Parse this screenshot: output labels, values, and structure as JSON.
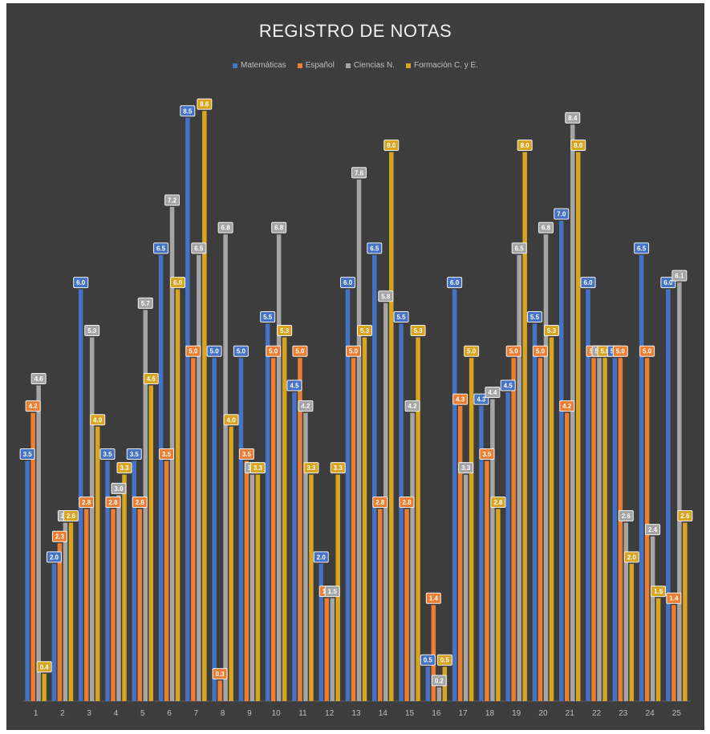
{
  "chart_data": {
    "type": "bar",
    "title": "REGISTRO DE NOTAS",
    "xlabel": "",
    "ylabel": "",
    "ylim": [
      0,
      9
    ],
    "grid": false,
    "legend": "top",
    "categories": [
      "1",
      "2",
      "3",
      "4",
      "5",
      "6",
      "7",
      "8",
      "9",
      "10",
      "11",
      "12",
      "13",
      "14",
      "15",
      "16",
      "17",
      "18",
      "19",
      "20",
      "21",
      "22",
      "23",
      "24",
      "25"
    ],
    "series": [
      {
        "name": "Matemáticas",
        "color": "#4472c4",
        "values": [
          3.5,
          2.0,
          6.0,
          3.5,
          3.5,
          6.5,
          8.5,
          5.0,
          5.0,
          5.5,
          4.5,
          2.0,
          6.0,
          6.5,
          5.5,
          0.5,
          6.0,
          4.3,
          4.5,
          5.5,
          7.0,
          6.0,
          5.0,
          6.5,
          6.0
        ],
        "labels": [
          "3.5",
          "2.0",
          "6.0",
          "3.5",
          "3.5",
          "6.5",
          "8.5",
          "5.0",
          "5.0",
          "5.5",
          "4.5",
          "2.0",
          "6.0",
          "6.5",
          "5.5",
          "0.5",
          "6.0",
          "4.3",
          "4.5",
          "5.5",
          "7.0",
          "6.0",
          "5.0",
          "6.5",
          "6.0"
        ]
      },
      {
        "name": "Español",
        "color": "#ed7d31",
        "values": [
          4.2,
          2.3,
          2.8,
          2.8,
          2.8,
          3.5,
          5.0,
          0.3,
          3.5,
          5.0,
          5.0,
          1.5,
          5.0,
          2.8,
          2.8,
          1.4,
          4.3,
          3.5,
          5.0,
          5.0,
          4.2,
          5.0,
          5.0,
          5.0,
          1.4
        ],
        "labels": [
          "4.2",
          "2.3",
          "2.8",
          "2.8",
          "2.8",
          "3.5",
          "5.0",
          "0.3",
          "3.5",
          "5.0",
          "5.0",
          "1.5",
          "5.0",
          "2.8",
          "2.8",
          "1.4",
          "4.3",
          "3.5",
          "5.0",
          "5.0",
          "4.2",
          "5.0",
          "5.0",
          "5.0",
          "1.4"
        ]
      },
      {
        "name": "Ciencias N.",
        "color": "#a5a5a5",
        "values": [
          4.6,
          2.6,
          5.3,
          3.0,
          5.7,
          7.2,
          6.5,
          6.8,
          3.3,
          6.8,
          4.2,
          1.5,
          7.6,
          5.8,
          4.2,
          0.2,
          3.3,
          4.4,
          6.5,
          6.8,
          8.4,
          5.0,
          2.6,
          2.4,
          6.1
        ],
        "labels": [
          "4.6",
          "2.6",
          "5.3",
          "3.0",
          "5.7",
          "7.2",
          "6.5",
          "6.8",
          "3.3",
          "6.8",
          "4.2",
          "1.5",
          "7.6",
          "5.8",
          "4.2",
          "0.2",
          "3.3",
          "4.4",
          "6.5",
          "6.8",
          "8.4",
          "5.0",
          "2.6",
          "2.4",
          "6.1"
        ]
      },
      {
        "name": "Formación C. y E.",
        "color": "#d9a520",
        "values": [
          0.4,
          2.6,
          4.0,
          3.3,
          4.6,
          6.0,
          8.6,
          4.0,
          3.3,
          5.3,
          3.3,
          3.3,
          5.3,
          8.0,
          5.3,
          0.5,
          5.0,
          2.8,
          8.0,
          5.3,
          8.0,
          5.0,
          2.0,
          1.5,
          2.6
        ],
        "labels": [
          "0.4",
          "2.6",
          "4.0",
          "3.3",
          "4.6",
          "6.0",
          "8.6",
          "4.0",
          "3.3",
          "5.3",
          "3.3",
          "3.3",
          "5.3",
          "8.0",
          "5.3",
          "0.5",
          "5.0",
          "2.8",
          "8.0",
          "5.3",
          "8.0",
          "5.0",
          "2.0",
          "1.5",
          "2.6"
        ]
      }
    ]
  }
}
